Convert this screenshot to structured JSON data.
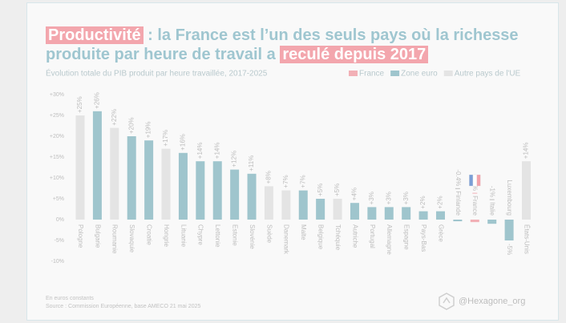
{
  "chart_data": {
    "type": "bar",
    "title": {
      "line1": [
        "Productivité",
        " : la France est l’un des seuls pays où la richesse"
      ],
      "line2": [
        "produite par heure de travail a ",
        "reculé depuis 2017"
      ]
    },
    "subtitle": "Évolution totale du PIB produit par heure travaillée, 2017-2025",
    "legend": [
      {
        "name": "France",
        "color": "#f2b0b6"
      },
      {
        "name": "Zone euro",
        "color": "#9fc5cd"
      },
      {
        "name": "Autre pays de l'UE",
        "color": "#e4e4e4"
      }
    ],
    "categories": [
      "Pologne",
      "Bulgarie",
      "Roumanie",
      "Slovaquie",
      "Croatie",
      "Hongrie",
      "Lituanie",
      "Chypre",
      "Lettonie",
      "Estonie",
      "Slovénie",
      "Suède",
      "Danemark",
      "Malte",
      "Belgique",
      "Tchéquie",
      "Autriche",
      "Portugal",
      "Allemagne",
      "Espagne",
      "Pays-Bas",
      "Grèce",
      "Finlande",
      "France",
      "Italie",
      "Luxembourg",
      "États-Unis"
    ],
    "values": [
      25,
      26,
      22,
      20,
      19,
      17,
      16,
      14,
      14,
      12,
      11,
      8,
      7,
      7,
      5,
      5,
      4,
      3,
      3,
      3,
      2,
      2,
      -0.4,
      -0.6,
      -1,
      -5,
      14
    ],
    "value_labels": [
      "+25%",
      "+26%",
      "+22%",
      "+20%",
      "+19%",
      "+17%",
      "+16%",
      "+14%",
      "+14%",
      "+12%",
      "+11%",
      "+8%",
      "+7%",
      "+7%",
      "+5%",
      "+5%",
      "+4%",
      "+3%",
      "+3%",
      "+3%",
      "+2%",
      "+2%",
      "-0.4%",
      "-0.6%",
      "-1%",
      "-5%",
      "+14%"
    ],
    "bar_legend": [
      2,
      1,
      2,
      1,
      1,
      2,
      1,
      1,
      1,
      1,
      1,
      2,
      2,
      1,
      1,
      2,
      1,
      1,
      1,
      1,
      1,
      1,
      1,
      0,
      1,
      1,
      2
    ],
    "ylim": [
      -10,
      30
    ],
    "yticks": [
      {
        "value": -10,
        "label": "-10%"
      },
      {
        "value": -5,
        "label": "-5%"
      },
      {
        "value": 0,
        "label": "0%"
      },
      {
        "value": 5,
        "label": "+5%"
      },
      {
        "value": 10,
        "label": "+10%"
      },
      {
        "value": 15,
        "label": "+15%"
      },
      {
        "value": 20,
        "label": "+20%"
      },
      {
        "value": 25,
        "label": "+25%"
      },
      {
        "value": 30,
        "label": "+30%"
      }
    ],
    "grid": false,
    "notes": [
      "En euros constants",
      "Source : Commission Européenne, base AMECO 21 mai 2025"
    ],
    "credit": "@Hexagone_org"
  }
}
